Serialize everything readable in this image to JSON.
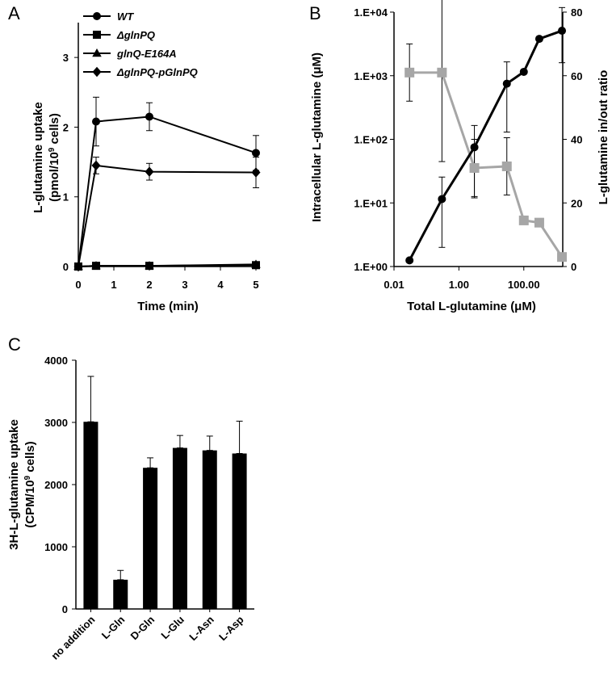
{
  "chart_data": [
    {
      "panel": "A",
      "type": "line",
      "x": [
        0,
        0.5,
        2,
        5
      ],
      "xticks": [
        0,
        1,
        2,
        3,
        4,
        5
      ],
      "xlim": [
        0,
        5
      ],
      "yticks": [
        0,
        1,
        2,
        3
      ],
      "ylim": [
        0,
        3.5
      ],
      "xlabel": "Time (min)",
      "ylabel_line1": "L-glutamine uptake",
      "ylabel_line2_prefix": "(pmol/10",
      "ylabel_sup": "9",
      "ylabel_line2_suffix": " cells)",
      "legend_position": "top-left",
      "series": [
        {
          "name": "WT",
          "marker": "circle",
          "values": [
            0,
            2.08,
            2.15,
            1.63
          ],
          "errors": [
            0,
            0.35,
            0.2,
            0.25
          ]
        },
        {
          "name": "ΔglnPQ",
          "marker": "square",
          "values": [
            0,
            0.01,
            0.01,
            0.02
          ],
          "errors": [
            0,
            0,
            0,
            0
          ]
        },
        {
          "name": "glnQ-E164A",
          "marker": "triangle",
          "values": [
            0,
            0.01,
            0.01,
            0.03
          ],
          "errors": [
            0,
            0,
            0,
            0
          ]
        },
        {
          "name": "ΔglnPQ-pGlnPQ",
          "marker": "diamond",
          "values": [
            0,
            1.45,
            1.36,
            1.35
          ],
          "errors": [
            0,
            0.12,
            0.12,
            0.22
          ]
        }
      ]
    },
    {
      "panel": "B",
      "type": "line",
      "x": [
        0.03,
        0.3,
        3,
        30,
        100,
        300,
        1500
      ],
      "xscale": "log",
      "xlim": [
        0.01,
        1585
      ],
      "xtick_values": [
        0.01,
        1,
        100
      ],
      "xtick_labels": [
        "0.01",
        "1.00",
        "100.00"
      ],
      "xlabel": "Total L-glutamine (μM)",
      "left_axis": {
        "scale": "log",
        "ylim": [
          1,
          10000
        ],
        "tick_values": [
          1,
          10,
          100,
          1000,
          10000
        ],
        "tick_labels": [
          "1.E+00",
          "1.E+01",
          "1.E+02",
          "1.E+03",
          "1.E+04"
        ],
        "label": "Intracellular L-glutamine (μM)"
      },
      "right_axis": {
        "scale": "linear",
        "ylim": [
          0,
          80
        ],
        "tick_values": [
          0,
          20,
          40,
          60,
          80
        ],
        "tick_labels": [
          "0",
          "20",
          "40",
          "60",
          "80"
        ],
        "label": "L-glutamine in/out ratio"
      },
      "series": [
        {
          "name": "Intracellular L-glutamine",
          "axis": "left",
          "color": "#000000",
          "values": [
            1.25,
            11.5,
            75,
            750,
            1150,
            3800,
            5100
          ],
          "err_up": [
            0,
            14,
            90,
            900,
            0,
            0,
            6700
          ],
          "err_down": [
            0,
            9.5,
            63,
            620,
            0,
            0,
            3500
          ]
        },
        {
          "name": "L-glutamine in/out ratio",
          "axis": "right",
          "color": "#a6a6a6",
          "values": [
            61,
            61,
            31,
            31.5,
            14.5,
            13.8,
            3
          ],
          "errors": [
            9,
            28,
            9,
            9,
            0,
            0,
            0
          ]
        }
      ]
    },
    {
      "panel": "C",
      "type": "bar",
      "categories": [
        "no addition",
        "L-Gln",
        "D-Gln",
        "L-Glu",
        "L-Asn",
        "L-Asp"
      ],
      "values": [
        3010,
        470,
        2270,
        2590,
        2550,
        2500
      ],
      "errors": [
        730,
        150,
        160,
        200,
        230,
        520
      ],
      "ylim": [
        0,
        4000
      ],
      "yticks": [
        0,
        1000,
        2000,
        3000,
        4000
      ],
      "ylabel_line1": "3H-L-glutamine uptake",
      "ylabel_line2_prefix": "(CPM/10",
      "ylabel_sup": "9",
      "ylabel_line2_suffix": " cells)",
      "bar_color": "#000000"
    }
  ],
  "panel_labels": {
    "a": "A",
    "b": "B",
    "c": "C"
  }
}
